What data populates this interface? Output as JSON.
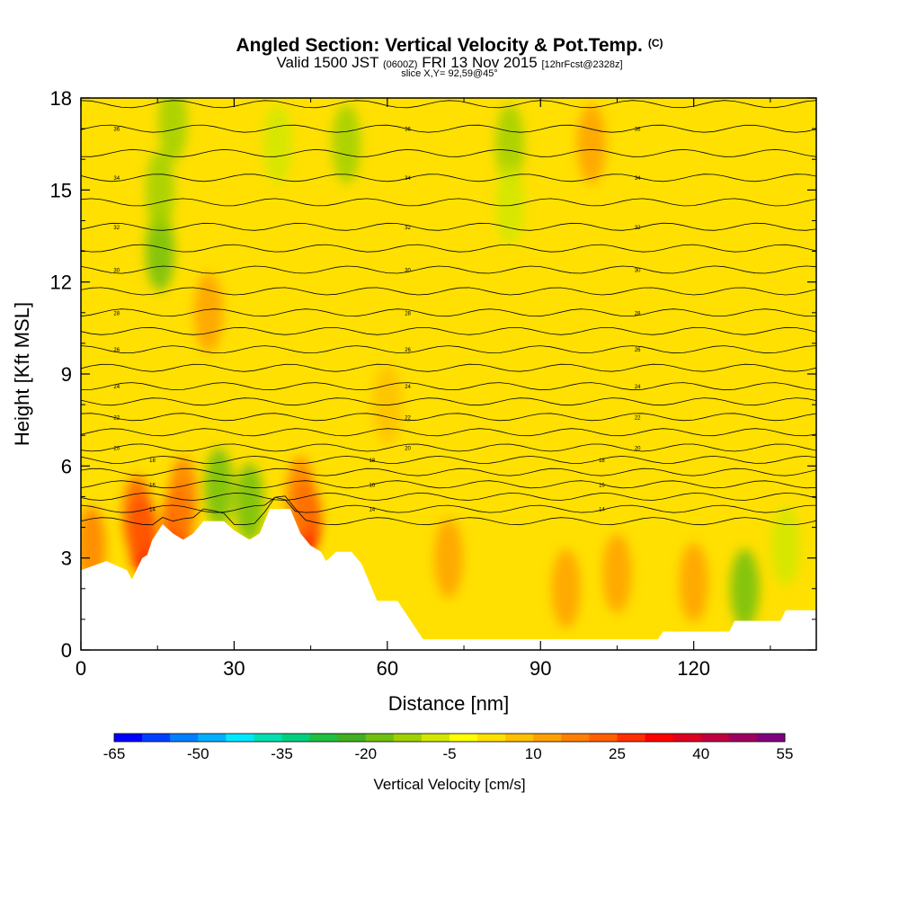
{
  "header": {
    "title": "Angled Section: Vertical Velocity & Pot.Temp.",
    "title_mark": "(C)",
    "subtitle_main_a": "Valid 1500 JST",
    "subtitle_small_a": "(0600Z)",
    "subtitle_main_b": "FRI 13 Nov 2015",
    "subtitle_small_b": "[12hrFcst@2328z]",
    "slice": "slice X,Y= 92,59@45°"
  },
  "chart_data": {
    "type": "heatmap",
    "xlabel": "Distance [nm]",
    "ylabel": "Height [Kft MSL]",
    "xlim": [
      0,
      144
    ],
    "ylim": [
      0,
      18
    ],
    "x_ticks": [
      0,
      30,
      60,
      90,
      120
    ],
    "y_ticks": [
      0,
      3,
      6,
      9,
      12,
      15,
      18
    ],
    "terrain_kft": [
      [
        0,
        2.6
      ],
      [
        5,
        2.9
      ],
      [
        9,
        2.6
      ],
      [
        10,
        2.3
      ],
      [
        12,
        3.0
      ],
      [
        13,
        3.1
      ],
      [
        14,
        3.6
      ],
      [
        16,
        4.1
      ],
      [
        18,
        3.8
      ],
      [
        20,
        3.6
      ],
      [
        22,
        3.8
      ],
      [
        24,
        4.2
      ],
      [
        28,
        4.2
      ],
      [
        30,
        3.9
      ],
      [
        33,
        3.6
      ],
      [
        35,
        3.8
      ],
      [
        37,
        4.6
      ],
      [
        41,
        4.6
      ],
      [
        43,
        3.8
      ],
      [
        45,
        3.4
      ],
      [
        47,
        3.2
      ],
      [
        48,
        2.9
      ],
      [
        50,
        3.2
      ],
      [
        53,
        3.2
      ],
      [
        55,
        2.8
      ],
      [
        58,
        1.6
      ],
      [
        62,
        1.6
      ],
      [
        64,
        1.1
      ],
      [
        67,
        0.35
      ],
      [
        113,
        0.35
      ],
      [
        114,
        0.6
      ],
      [
        127,
        0.6
      ],
      [
        128,
        0.95
      ],
      [
        137,
        0.95
      ],
      [
        138,
        1.3
      ],
      [
        144,
        1.3
      ]
    ],
    "theta_isolines": [
      {
        "z": 4.2
      },
      {
        "z": 4.6,
        "label": "14"
      },
      {
        "z": 5.0
      },
      {
        "z": 5.4,
        "label": "16"
      },
      {
        "z": 5.8
      },
      {
        "z": 6.2,
        "label": "18"
      },
      {
        "z": 6.6,
        "label": "20"
      },
      {
        "z": 7.1
      },
      {
        "z": 7.6,
        "label": "22"
      },
      {
        "z": 8.1
      },
      {
        "z": 8.6,
        "label": "24"
      },
      {
        "z": 9.2
      },
      {
        "z": 9.8,
        "label": "26"
      },
      {
        "z": 10.4
      },
      {
        "z": 11.0,
        "label": "28"
      },
      {
        "z": 11.7
      },
      {
        "z": 12.4,
        "label": "30"
      },
      {
        "z": 13.1
      },
      {
        "z": 13.8,
        "label": "32"
      },
      {
        "z": 14.6
      },
      {
        "z": 15.4,
        "label": "34"
      },
      {
        "z": 16.2
      },
      {
        "z": 17.0,
        "label": "36"
      },
      {
        "z": 17.8
      }
    ],
    "velocity_cells": [
      {
        "x": 12,
        "z": 3.8,
        "v": 32
      },
      {
        "x": 11,
        "z": 4.4,
        "v": 22
      },
      {
        "x": 19,
        "z": 4.2,
        "v": 28
      },
      {
        "x": 20,
        "z": 5.0,
        "v": 18
      },
      {
        "x": 44,
        "z": 4.3,
        "v": 30
      },
      {
        "x": 43,
        "z": 5.0,
        "v": 16
      },
      {
        "x": 2,
        "z": 3.4,
        "v": 16
      },
      {
        "x": 27,
        "z": 5.3,
        "v": -16
      },
      {
        "x": 33,
        "z": 4.8,
        "v": -18
      },
      {
        "x": 15.5,
        "z": 13.0,
        "v": -16
      },
      {
        "x": 15.5,
        "z": 15.0,
        "v": -12
      },
      {
        "x": 18,
        "z": 17.2,
        "v": -12
      },
      {
        "x": 38.5,
        "z": 16.5,
        "v": -10
      },
      {
        "x": 52,
        "z": 16.5,
        "v": -12
      },
      {
        "x": 84,
        "z": 16.5,
        "v": -12
      },
      {
        "x": 84,
        "z": 14.5,
        "v": -6
      },
      {
        "x": 130,
        "z": 2.0,
        "v": -16
      },
      {
        "x": 138,
        "z": 3.4,
        "v": -6
      },
      {
        "x": 72,
        "z": 3.0,
        "v": 12
      },
      {
        "x": 95,
        "z": 2.0,
        "v": 12
      },
      {
        "x": 105,
        "z": 2.5,
        "v": 10
      },
      {
        "x": 120,
        "z": 2.2,
        "v": 12
      },
      {
        "x": 100,
        "z": 16.5,
        "v": 10
      },
      {
        "x": 25,
        "z": 11.0,
        "v": 10
      },
      {
        "x": 60,
        "z": 8.0,
        "v": 8
      }
    ],
    "colorbar": {
      "title": "Vertical Velocity [cm/s]",
      "labels": [
        "-65",
        "-50",
        "-35",
        "-20",
        "-5",
        "10",
        "25",
        "40",
        "55"
      ],
      "colors": [
        "#0000ff",
        "#0040ff",
        "#0080ff",
        "#00b0ff",
        "#00e8ff",
        "#00e0b0",
        "#00d080",
        "#20c040",
        "#40b020",
        "#70c010",
        "#a0d000",
        "#d0e800",
        "#ffff00",
        "#ffe000",
        "#ffc000",
        "#ffa000",
        "#ff8000",
        "#ff6000",
        "#ff3000",
        "#ff0000",
        "#e00020",
        "#c00040",
        "#a00060",
        "#800080"
      ]
    }
  }
}
